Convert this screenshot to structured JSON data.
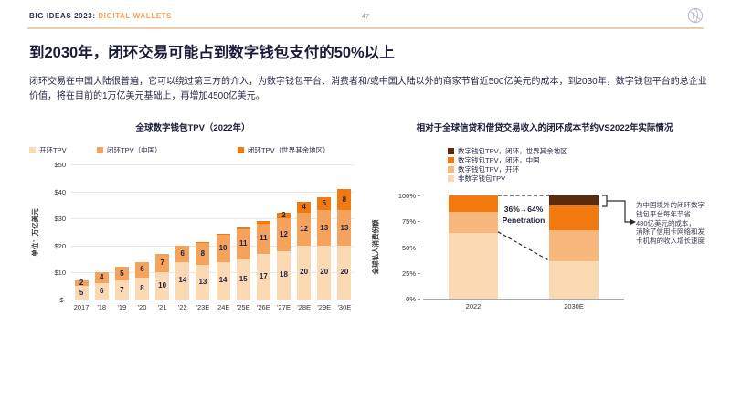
{
  "header": {
    "brand_prefix": "BIG IDEAS 2023:",
    "brand_suffix": " DIGITAL WALLETS",
    "page_number": "47",
    "logo": "ark-globe-logo"
  },
  "title": "到2030年，闭环交易可能占到数字钱包支付的50%以上",
  "body": "闭环交易在中国大陆很普遍，它可以绕过第三方的介入，为数字钱包平台、消费者和/或中国大陆以外的商家节省近500亿美元的成本，到2030年，数字钱包平台的总企业价值，将在目前的1万亿美元基础上，再增加4500亿美元。",
  "colors": {
    "accent_orange": "#f6a057",
    "navy": "#1b1c3a",
    "peach_light": "#fbd9b3",
    "peach_mid": "#f8b77d",
    "orange_mid": "#f4a25c",
    "orange_strong": "#f1790d",
    "brown_dark": "#5a2b0d"
  },
  "chart_data": [
    {
      "type": "bar",
      "stacked": true,
      "title": "全球数字钱包TPV（2022年）",
      "ylabel": "单位：万亿美元",
      "ymax": 50,
      "yticks": [
        "$50",
        "$40",
        "$30",
        "$20",
        "$10",
        "$-"
      ],
      "grid": true,
      "legend_position": "top-row",
      "categories": [
        "2017",
        "'18",
        "'19",
        "'20",
        "'21",
        "'22",
        "'23E",
        "'24E",
        "'25E",
        "'26E",
        "'27E",
        "'28E",
        "'29E",
        "'30E"
      ],
      "series": [
        {
          "name": "开环TPV",
          "color": "#fbd9b3",
          "values": [
            5,
            6,
            7,
            8,
            10,
            14,
            13,
            14,
            15,
            17,
            18,
            20,
            20,
            20
          ]
        },
        {
          "name": "闭环TPV（中国）",
          "color": "#f4a25c",
          "values": [
            2,
            4,
            5,
            6,
            7,
            6,
            8,
            10,
            11,
            11,
            12,
            12,
            13,
            13
          ]
        },
        {
          "name": "闭环TPV（世界其余地区）",
          "color": "#f1790d",
          "values": [
            0,
            0,
            0,
            0,
            0,
            0,
            0.4,
            0.5,
            0.7,
            1,
            2,
            4,
            5,
            8
          ],
          "labels": [
            null,
            null,
            null,
            null,
            null,
            null,
            null,
            null,
            null,
            null,
            "2",
            "4",
            "5",
            "8"
          ]
        }
      ],
      "legend": [
        {
          "label": "开环TPV",
          "color": "#fbd9b3"
        },
        {
          "label": "闭环TPV（中国）",
          "color": "#f4a25c"
        },
        {
          "label": "闭环TPV（世界其余地区）",
          "color": "#f1790d"
        }
      ]
    },
    {
      "type": "bar",
      "stacked": true,
      "unit": "%",
      "title": "相对于全球信贷和借贷交易收入的闭环成本节约VS2022年实际情况",
      "ylabel": "全球私人消费份额",
      "ymax": 100,
      "yticks": [
        "100%",
        "75%",
        "50%",
        "25%",
        "0%"
      ],
      "grid": false,
      "legend_position": "top-column",
      "categories": [
        "2022",
        "2030E"
      ],
      "series": [
        {
          "name": "非数字钱包TPV",
          "color": "#fbd9b3",
          "values": [
            64,
            36
          ]
        },
        {
          "name": "数字钱包TPV，开环",
          "color": "#f8b77d",
          "values": [
            20,
            30
          ]
        },
        {
          "name": "数字钱包TPV，闭环，中国",
          "color": "#f1790d",
          "values": [
            16,
            24
          ]
        },
        {
          "name": "数字钱包TPV，闭环，世界其余地区",
          "color": "#5a2b0d",
          "values": [
            0,
            10
          ]
        }
      ],
      "legend": [
        {
          "label": "数字钱包TPV，闭环，世界其余地区",
          "color": "#5a2b0d"
        },
        {
          "label": "数字钱包TPV，闭环，中国",
          "color": "#f1790d"
        },
        {
          "label": "数字钱包TPV，开环",
          "color": "#f8b77d"
        },
        {
          "label": "非数字钱包TPV",
          "color": "#fbd9b3"
        }
      ],
      "annotations": {
        "penetration_line1": "36%→64%",
        "penetration_line2": "Penetration",
        "callout_lines": [
          "为中国境外的闭环数字",
          "钱包平台每年节省",
          "480亿美元的成本，",
          "消除了信用卡网络和发",
          "卡机构的收入增长速度"
        ]
      }
    }
  ]
}
